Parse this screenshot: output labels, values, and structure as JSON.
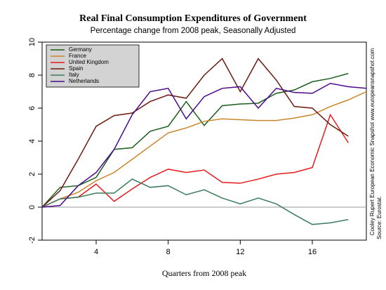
{
  "chart_data": {
    "type": "line",
    "title": "Real Final Consumption Expenditures of Government",
    "subtitle": "Percentage change from 2008 peak, Seasonally Adjusted",
    "x_label": "Quarters from 2008 peak",
    "side_note": "Cooley Rupert European Economic Snapshot  www.europeansnapshot.com",
    "source": "Source: Eurostat.",
    "x": [
      1,
      2,
      3,
      4,
      5,
      6,
      7,
      8,
      9,
      10,
      11,
      12,
      13,
      14,
      15,
      16,
      17,
      18,
      19
    ],
    "xlim": [
      1,
      19
    ],
    "xticks": [
      4,
      8,
      12,
      16
    ],
    "ylim": [
      -2,
      10
    ],
    "yticks": [
      -2,
      0,
      2,
      4,
      6,
      8,
      10
    ],
    "reference_line": 0,
    "legend": "top-left",
    "series": [
      {
        "name": "Germany",
        "color": "#1b5e1b",
        "values": [
          0,
          1.2,
          1.3,
          1.8,
          3.5,
          3.6,
          4.6,
          4.9,
          6.4,
          4.95,
          6.15,
          6.25,
          6.3,
          6.9,
          7.1,
          7.6,
          7.8,
          8.1,
          null
        ]
      },
      {
        "name": "France",
        "color": "#c8862a",
        "values": [
          0,
          0.5,
          0.9,
          1.6,
          2.1,
          2.9,
          3.7,
          4.5,
          4.8,
          5.2,
          5.35,
          5.3,
          5.25,
          5.25,
          5.4,
          5.6,
          6.1,
          6.5,
          7.0
        ]
      },
      {
        "name": "United Kingdom",
        "color": "#e8191c",
        "values": [
          0,
          0.5,
          0.6,
          1.4,
          0.35,
          1.1,
          1.8,
          2.3,
          2.1,
          2.25,
          1.5,
          1.45,
          1.7,
          2.0,
          2.1,
          2.4,
          5.6,
          3.9,
          null
        ]
      },
      {
        "name": "Spain",
        "color": "#6b1a0e",
        "values": [
          0,
          1.0,
          2.9,
          4.9,
          5.55,
          5.7,
          6.4,
          6.8,
          6.6,
          8.0,
          9.0,
          7.0,
          9.0,
          7.7,
          6.1,
          6.0,
          5.0,
          4.3,
          null
        ]
      },
      {
        "name": "Italy",
        "color": "#3b7d5c",
        "values": [
          0,
          0.5,
          0.6,
          0.85,
          0.85,
          1.7,
          1.2,
          1.3,
          0.75,
          1.05,
          0.55,
          0.2,
          0.55,
          0.2,
          -0.45,
          -1.05,
          -0.95,
          -0.75,
          null
        ]
      },
      {
        "name": "Netherlands",
        "color": "#4b0a8c",
        "values": [
          0,
          0.1,
          1.3,
          2.1,
          3.5,
          5.6,
          7.0,
          7.2,
          5.35,
          6.7,
          7.2,
          7.3,
          6.0,
          7.2,
          6.95,
          6.9,
          7.5,
          7.3,
          7.2
        ]
      }
    ]
  }
}
